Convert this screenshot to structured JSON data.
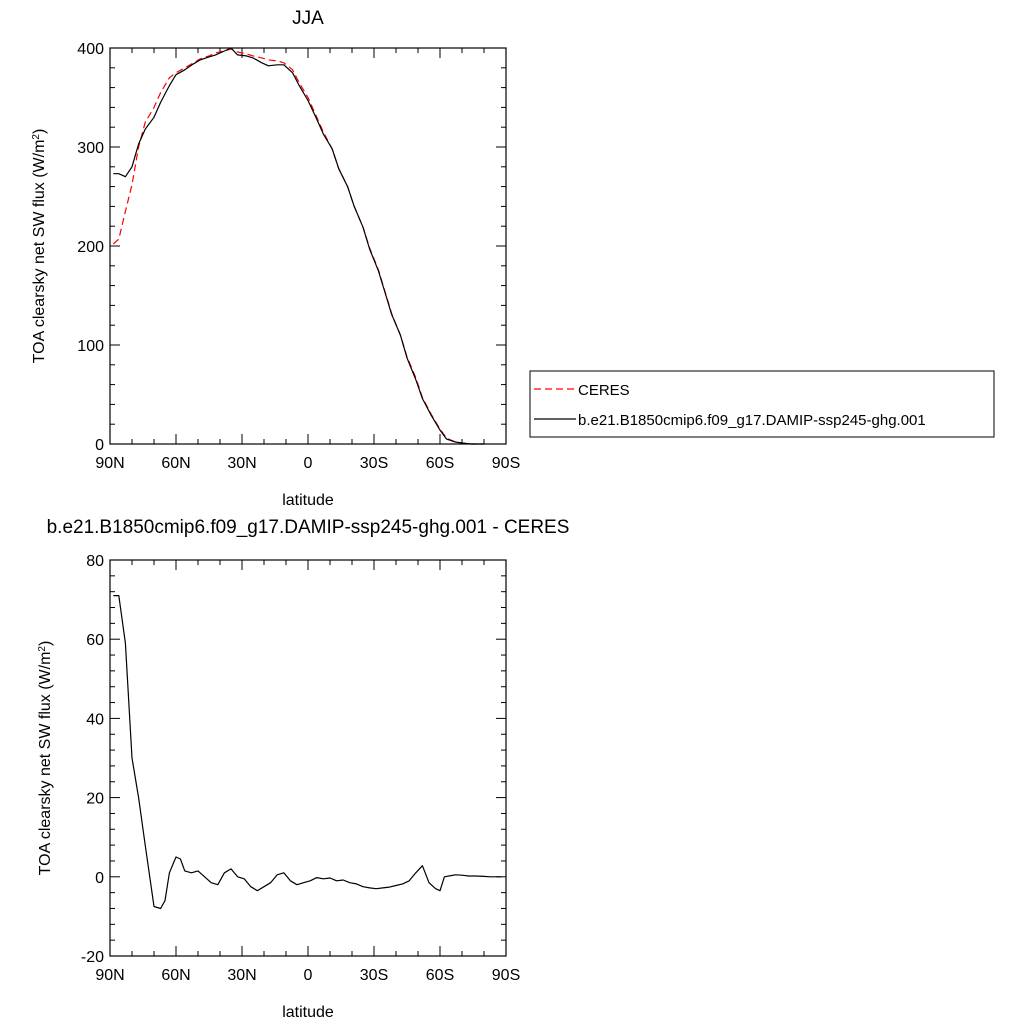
{
  "chart_data": [
    {
      "type": "line",
      "title": "JJA",
      "xlabel": "latitude",
      "ylabel_main": "TOA clearsky net SW flux (W/m",
      "ylabel_sup": "2",
      "ylabel_close": ")",
      "xlim": [
        90,
        -90
      ],
      "ylim": [
        0,
        400
      ],
      "xticks": [
        90,
        60,
        30,
        0,
        -30,
        -60,
        -90
      ],
      "xtick_labels": [
        "90N",
        "60N",
        "30N",
        "0",
        "30S",
        "60S",
        "90S"
      ],
      "yticks": [
        0,
        100,
        200,
        300,
        400
      ],
      "ytick_labels": [
        "0",
        "100",
        "200",
        "300",
        "400"
      ],
      "legend_position": "right",
      "series": [
        {
          "name": "CERES",
          "color": "#ff0000",
          "dashed": true,
          "x": [
            88.5,
            86,
            83,
            80,
            77,
            74,
            70,
            67,
            63,
            60,
            56,
            52,
            49,
            45,
            42,
            38,
            35,
            32,
            28,
            25,
            21,
            18,
            14,
            11,
            7,
            4,
            0,
            -4,
            -7,
            -11,
            -14,
            -18,
            -21,
            -25,
            -28,
            -32,
            -35,
            -38,
            -42,
            -45,
            -49,
            -52,
            -56,
            -60,
            -63,
            -67,
            -70,
            -74,
            -77,
            -80
          ],
          "y": [
            202,
            207,
            235,
            262,
            300,
            325,
            340,
            355,
            370,
            375,
            380,
            385,
            389,
            392,
            395,
            397,
            399,
            396,
            394,
            392,
            390,
            388,
            387,
            385,
            378,
            365,
            350,
            330,
            315,
            298,
            278,
            260,
            240,
            219,
            198,
            176,
            154,
            132,
            110,
            88,
            67,
            47,
            30,
            15,
            6,
            2,
            1,
            0,
            0,
            0
          ]
        },
        {
          "name": "b.e21.B1850cmip6.f09_g17.DAMIP-ssp245-ghg.001",
          "color": "#000000",
          "dashed": false,
          "x": [
            88.5,
            86,
            83,
            80,
            77,
            74,
            70,
            67,
            63,
            60,
            56,
            52,
            49,
            45,
            42,
            38,
            35,
            32,
            28,
            25,
            21,
            18,
            14,
            11,
            7,
            4,
            0,
            -4,
            -7,
            -11,
            -14,
            -18,
            -21,
            -25,
            -28,
            -32,
            -35,
            -38,
            -42,
            -45,
            -49,
            -52,
            -56,
            -60,
            -63,
            -67,
            -70,
            -74,
            -77,
            -80
          ],
          "y": [
            273,
            273,
            270,
            280,
            303,
            318,
            330,
            345,
            362,
            373,
            378,
            384,
            388,
            391,
            393,
            397,
            400,
            393,
            392,
            390,
            385,
            382,
            383,
            383,
            375,
            362,
            347,
            328,
            313,
            298,
            278,
            260,
            240,
            219,
            197,
            175,
            153,
            131,
            110,
            87,
            65,
            46,
            29,
            14,
            5,
            2,
            1,
            0,
            0,
            0
          ]
        }
      ]
    },
    {
      "type": "line",
      "title": "b.e21.B1850cmip6.f09_g17.DAMIP-ssp245-ghg.001 - CERES",
      "xlabel": "latitude",
      "ylabel_main": "TOA clearsky net SW flux (W/m",
      "ylabel_sup": "2",
      "ylabel_close": ")",
      "xlim": [
        90,
        -90
      ],
      "ylim": [
        -20,
        80
      ],
      "xticks": [
        90,
        60,
        30,
        0,
        -30,
        -60,
        -90
      ],
      "xtick_labels": [
        "90N",
        "60N",
        "30N",
        "0",
        "30S",
        "60S",
        "90S"
      ],
      "yticks": [
        -20,
        0,
        20,
        40,
        60,
        80
      ],
      "ytick_labels": [
        "-20",
        "0",
        "20",
        "40",
        "60",
        "80"
      ],
      "series": [
        {
          "color": "#000000",
          "dashed": false,
          "x": [
            88.5,
            86,
            83,
            80,
            77,
            74,
            70,
            67,
            65,
            63,
            60,
            58,
            56,
            53,
            50,
            47,
            44,
            41,
            38,
            35,
            32,
            29,
            26,
            23,
            20,
            17,
            14,
            11,
            8,
            5,
            2,
            -1,
            -4,
            -7,
            -10,
            -13,
            -16,
            -19,
            -22,
            -25,
            -28,
            -31,
            -34,
            -37,
            -40,
            -43,
            -46,
            -49,
            -52,
            -55,
            -58,
            -60,
            -62,
            -65,
            -67,
            -70,
            -73,
            -76,
            -80,
            -83,
            -86,
            -88
          ],
          "y": [
            71,
            71,
            59,
            30,
            20,
            8,
            -7.5,
            -8,
            -6,
            1,
            5,
            4.5,
            1.5,
            1,
            1.5,
            0,
            -1.5,
            -2,
            1,
            2,
            0,
            -0.5,
            -2.5,
            -3.5,
            -2.5,
            -1.5,
            0.5,
            1,
            -1,
            -2,
            -1.5,
            -1,
            -0.2,
            -0.5,
            -0.3,
            -1,
            -0.8,
            -1.5,
            -1.8,
            -2.5,
            -2.8,
            -3,
            -2.8,
            -2.6,
            -2.2,
            -1.8,
            -1,
            1,
            2.8,
            -1.5,
            -3,
            -3.5,
            0,
            0.3,
            0.5,
            0.4,
            0.2,
            0.2,
            0.1,
            0,
            0,
            0
          ]
        }
      ]
    }
  ]
}
